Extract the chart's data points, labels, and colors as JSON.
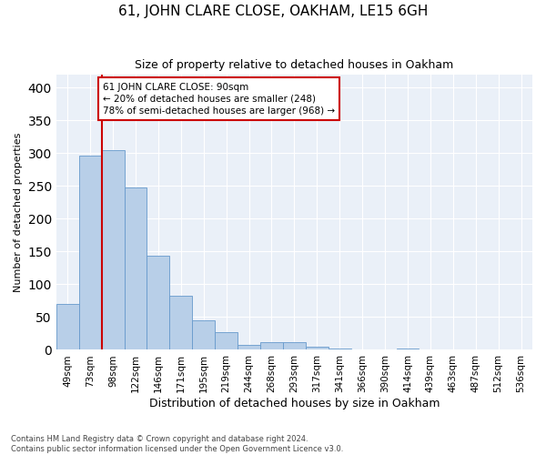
{
  "title": "61, JOHN CLARE CLOSE, OAKHAM, LE15 6GH",
  "subtitle": "Size of property relative to detached houses in Oakham",
  "xlabel": "Distribution of detached houses by size in Oakham",
  "ylabel": "Number of detached properties",
  "bin_labels": [
    "49sqm",
    "73sqm",
    "98sqm",
    "122sqm",
    "146sqm",
    "171sqm",
    "195sqm",
    "219sqm",
    "244sqm",
    "268sqm",
    "293sqm",
    "317sqm",
    "341sqm",
    "366sqm",
    "390sqm",
    "414sqm",
    "439sqm",
    "463sqm",
    "487sqm",
    "512sqm",
    "536sqm"
  ],
  "bar_heights": [
    70,
    297,
    305,
    248,
    143,
    83,
    45,
    27,
    8,
    12,
    12,
    5,
    2,
    1,
    0,
    2,
    0,
    1,
    0,
    1,
    0
  ],
  "bar_color": "#b8cfe8",
  "bar_edgecolor": "#6699cc",
  "red_line_x": 1.5,
  "annotation_text": "61 JOHN CLARE CLOSE: 90sqm\n← 20% of detached houses are smaller (248)\n78% of semi-detached houses are larger (968) →",
  "annotation_box_color": "#ffffff",
  "annotation_box_edgecolor": "#cc0000",
  "ylim": [
    0,
    420
  ],
  "background_color": "#eaf0f8",
  "footer_text": "Contains HM Land Registry data © Crown copyright and database right 2024.\nContains public sector information licensed under the Open Government Licence v3.0.",
  "title_fontsize": 11,
  "subtitle_fontsize": 9,
  "xlabel_fontsize": 9,
  "ylabel_fontsize": 8,
  "tick_fontsize": 7.5,
  "footer_fontsize": 6.0
}
